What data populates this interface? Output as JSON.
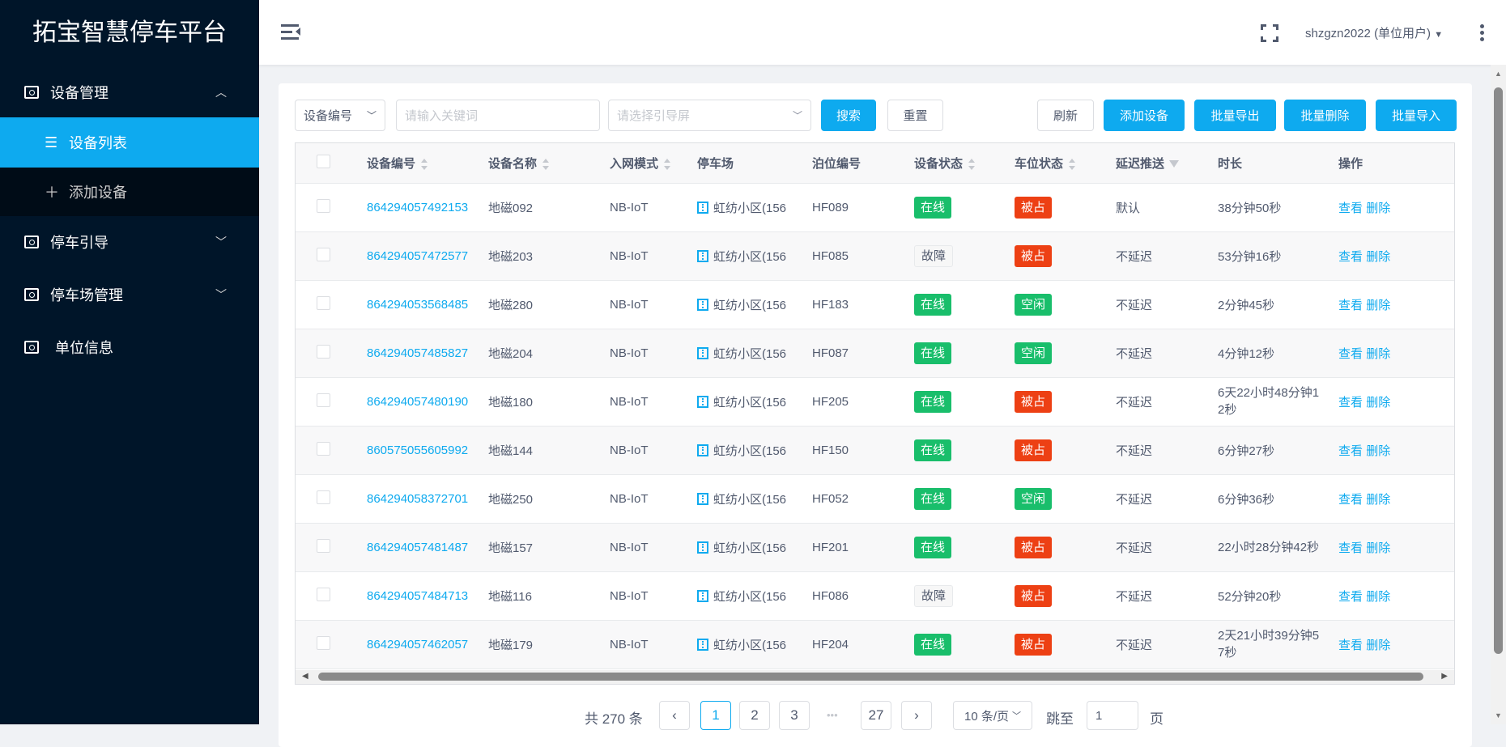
{
  "app": {
    "title": "拓宝智慧停车平台"
  },
  "sidebar": {
    "menus": [
      {
        "label": "设备管理",
        "icon": "device-icon",
        "expanded": true,
        "children": [
          {
            "label": "设备列表",
            "icon": "list-icon",
            "active": true
          },
          {
            "label": "添加设备",
            "icon": "plus-icon"
          }
        ]
      },
      {
        "label": "停车引导",
        "icon": "device-icon",
        "expanded": false
      },
      {
        "label": "停车场管理",
        "icon": "device-icon",
        "expanded": false
      },
      {
        "label": "单位信息",
        "icon": "device-icon"
      }
    ]
  },
  "header": {
    "user": "shzgzn2022 (单位用户)"
  },
  "toolbar": {
    "field_select": "设备编号",
    "keyword_placeholder": "请输入关键词",
    "screen_placeholder": "请选择引导屏",
    "search": "搜索",
    "reset": "重置",
    "refresh": "刷新",
    "add": "添加设备",
    "export": "批量导出",
    "batch_delete": "批量删除",
    "import": "批量导入"
  },
  "table": {
    "columns": [
      "设备编号",
      "设备名称",
      "入网模式",
      "停车场",
      "泊位编号",
      "设备状态",
      "车位状态",
      "延迟推送",
      "时长",
      "操作"
    ],
    "actions": [
      "查看",
      "删除"
    ],
    "rows": [
      [
        "864294057492153",
        "地磁092",
        "NB-IoT",
        "虹纺小区(156",
        "HF089",
        "在线",
        "被占",
        "默认",
        "38分钟50秒"
      ],
      [
        "864294057472577",
        "地磁203",
        "NB-IoT",
        "虹纺小区(156",
        "HF085",
        "故障",
        "被占",
        "不延迟",
        "53分钟16秒"
      ],
      [
        "864294053568485",
        "地磁280",
        "NB-IoT",
        "虹纺小区(156",
        "HF183",
        "在线",
        "空闲",
        "不延迟",
        "2分钟45秒"
      ],
      [
        "864294057485827",
        "地磁204",
        "NB-IoT",
        "虹纺小区(156",
        "HF087",
        "在线",
        "空闲",
        "不延迟",
        "4分钟12秒"
      ],
      [
        "864294057480190",
        "地磁180",
        "NB-IoT",
        "虹纺小区(156",
        "HF205",
        "在线",
        "被占",
        "不延迟",
        "6天22小时48分钟12秒"
      ],
      [
        "860575055605992",
        "地磁144",
        "NB-IoT",
        "虹纺小区(156",
        "HF150",
        "在线",
        "被占",
        "不延迟",
        "6分钟27秒"
      ],
      [
        "864294058372701",
        "地磁250",
        "NB-IoT",
        "虹纺小区(156",
        "HF052",
        "在线",
        "空闲",
        "不延迟",
        "6分钟36秒"
      ],
      [
        "864294057481487",
        "地磁157",
        "NB-IoT",
        "虹纺小区(156",
        "HF201",
        "在线",
        "被占",
        "不延迟",
        "22小时28分钟42秒"
      ],
      [
        "864294057484713",
        "地磁116",
        "NB-IoT",
        "虹纺小区(156",
        "HF086",
        "故障",
        "被占",
        "不延迟",
        "52分钟20秒"
      ],
      [
        "864294057462057",
        "地磁179",
        "NB-IoT",
        "虹纺小区(156",
        "HF204",
        "在线",
        "被占",
        "不延迟",
        "2天21小时39分钟57秒"
      ]
    ]
  },
  "pagination": {
    "total": "共 270 条",
    "pages": [
      "1",
      "2",
      "3",
      "27"
    ],
    "ellipsis": "•••",
    "current": "1",
    "page_size": "10 条/页",
    "jump_label": "跳至",
    "jump_value": "1",
    "page_unit": "页"
  },
  "colors": {
    "primary": "#0eaaef",
    "online": "#19be6b",
    "occupied": "#ed4014",
    "sidebar": "#001529"
  }
}
